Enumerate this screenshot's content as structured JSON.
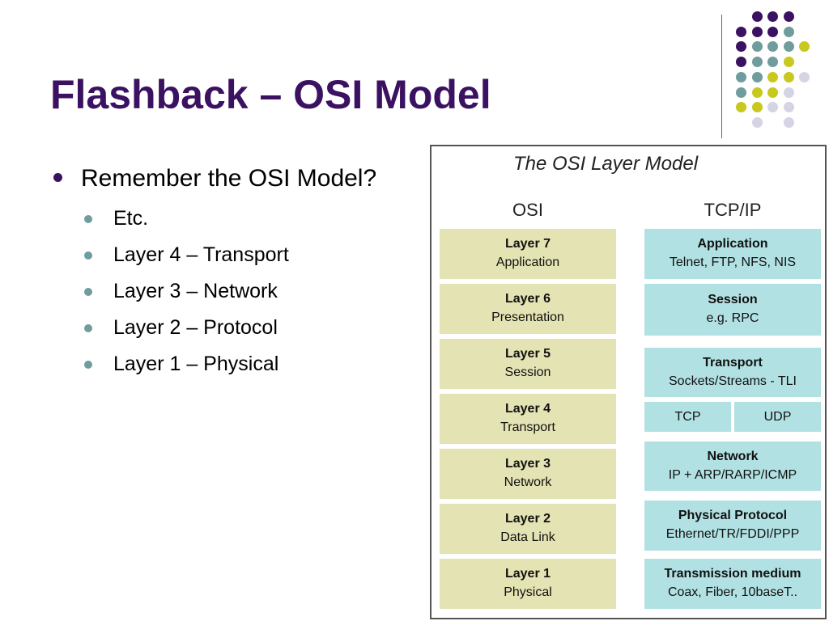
{
  "slide": {
    "title": "Flashback – OSI Model"
  },
  "bullets": {
    "main": "Remember the OSI Model?",
    "sub": [
      "Etc.",
      "Layer 4 – Transport",
      "Layer 3 – Network",
      "Layer 2 – Protocol",
      "Layer 1 – Physical"
    ]
  },
  "decoration": {
    "dot_colors": {
      "purple": "#3b1262",
      "teal": "#6f9c9c",
      "yellow": "#c8c81e",
      "lavender": "#d4d4e4"
    }
  },
  "diagram": {
    "title": "The OSI Layer Model",
    "osi_header": "OSI",
    "tcp_header": "TCP/IP",
    "osi_layers": [
      {
        "name": "Layer 7",
        "desc": "Application"
      },
      {
        "name": "Layer 6",
        "desc": "Presentation"
      },
      {
        "name": "Layer 5",
        "desc": "Session"
      },
      {
        "name": "Layer 4",
        "desc": "Transport"
      },
      {
        "name": "Layer 3",
        "desc": "Network"
      },
      {
        "name": "Layer 2",
        "desc": "Data Link"
      },
      {
        "name": "Layer 1",
        "desc": "Physical"
      }
    ],
    "tcp_layers": {
      "application": {
        "name": "Application",
        "desc": "Telnet, FTP, NFS, NIS"
      },
      "session": {
        "name": "Session",
        "desc": "e.g. RPC"
      },
      "transport": {
        "name": "Transport",
        "desc": "Sockets/Streams - TLI"
      },
      "tcp": "TCP",
      "udp": "UDP",
      "network": {
        "name": "Network",
        "desc": "IP + ARP/RARP/ICMP"
      },
      "physical_protocol": {
        "name": "Physical Protocol",
        "desc": "Ethernet/TR/FDDI/PPP"
      },
      "medium": {
        "name": "Transmission medium",
        "desc": "Coax, Fiber, 10baseT.."
      }
    },
    "colors": {
      "osi_fill": "#e4e3b3",
      "tcp_fill": "#b2e1e3"
    }
  }
}
